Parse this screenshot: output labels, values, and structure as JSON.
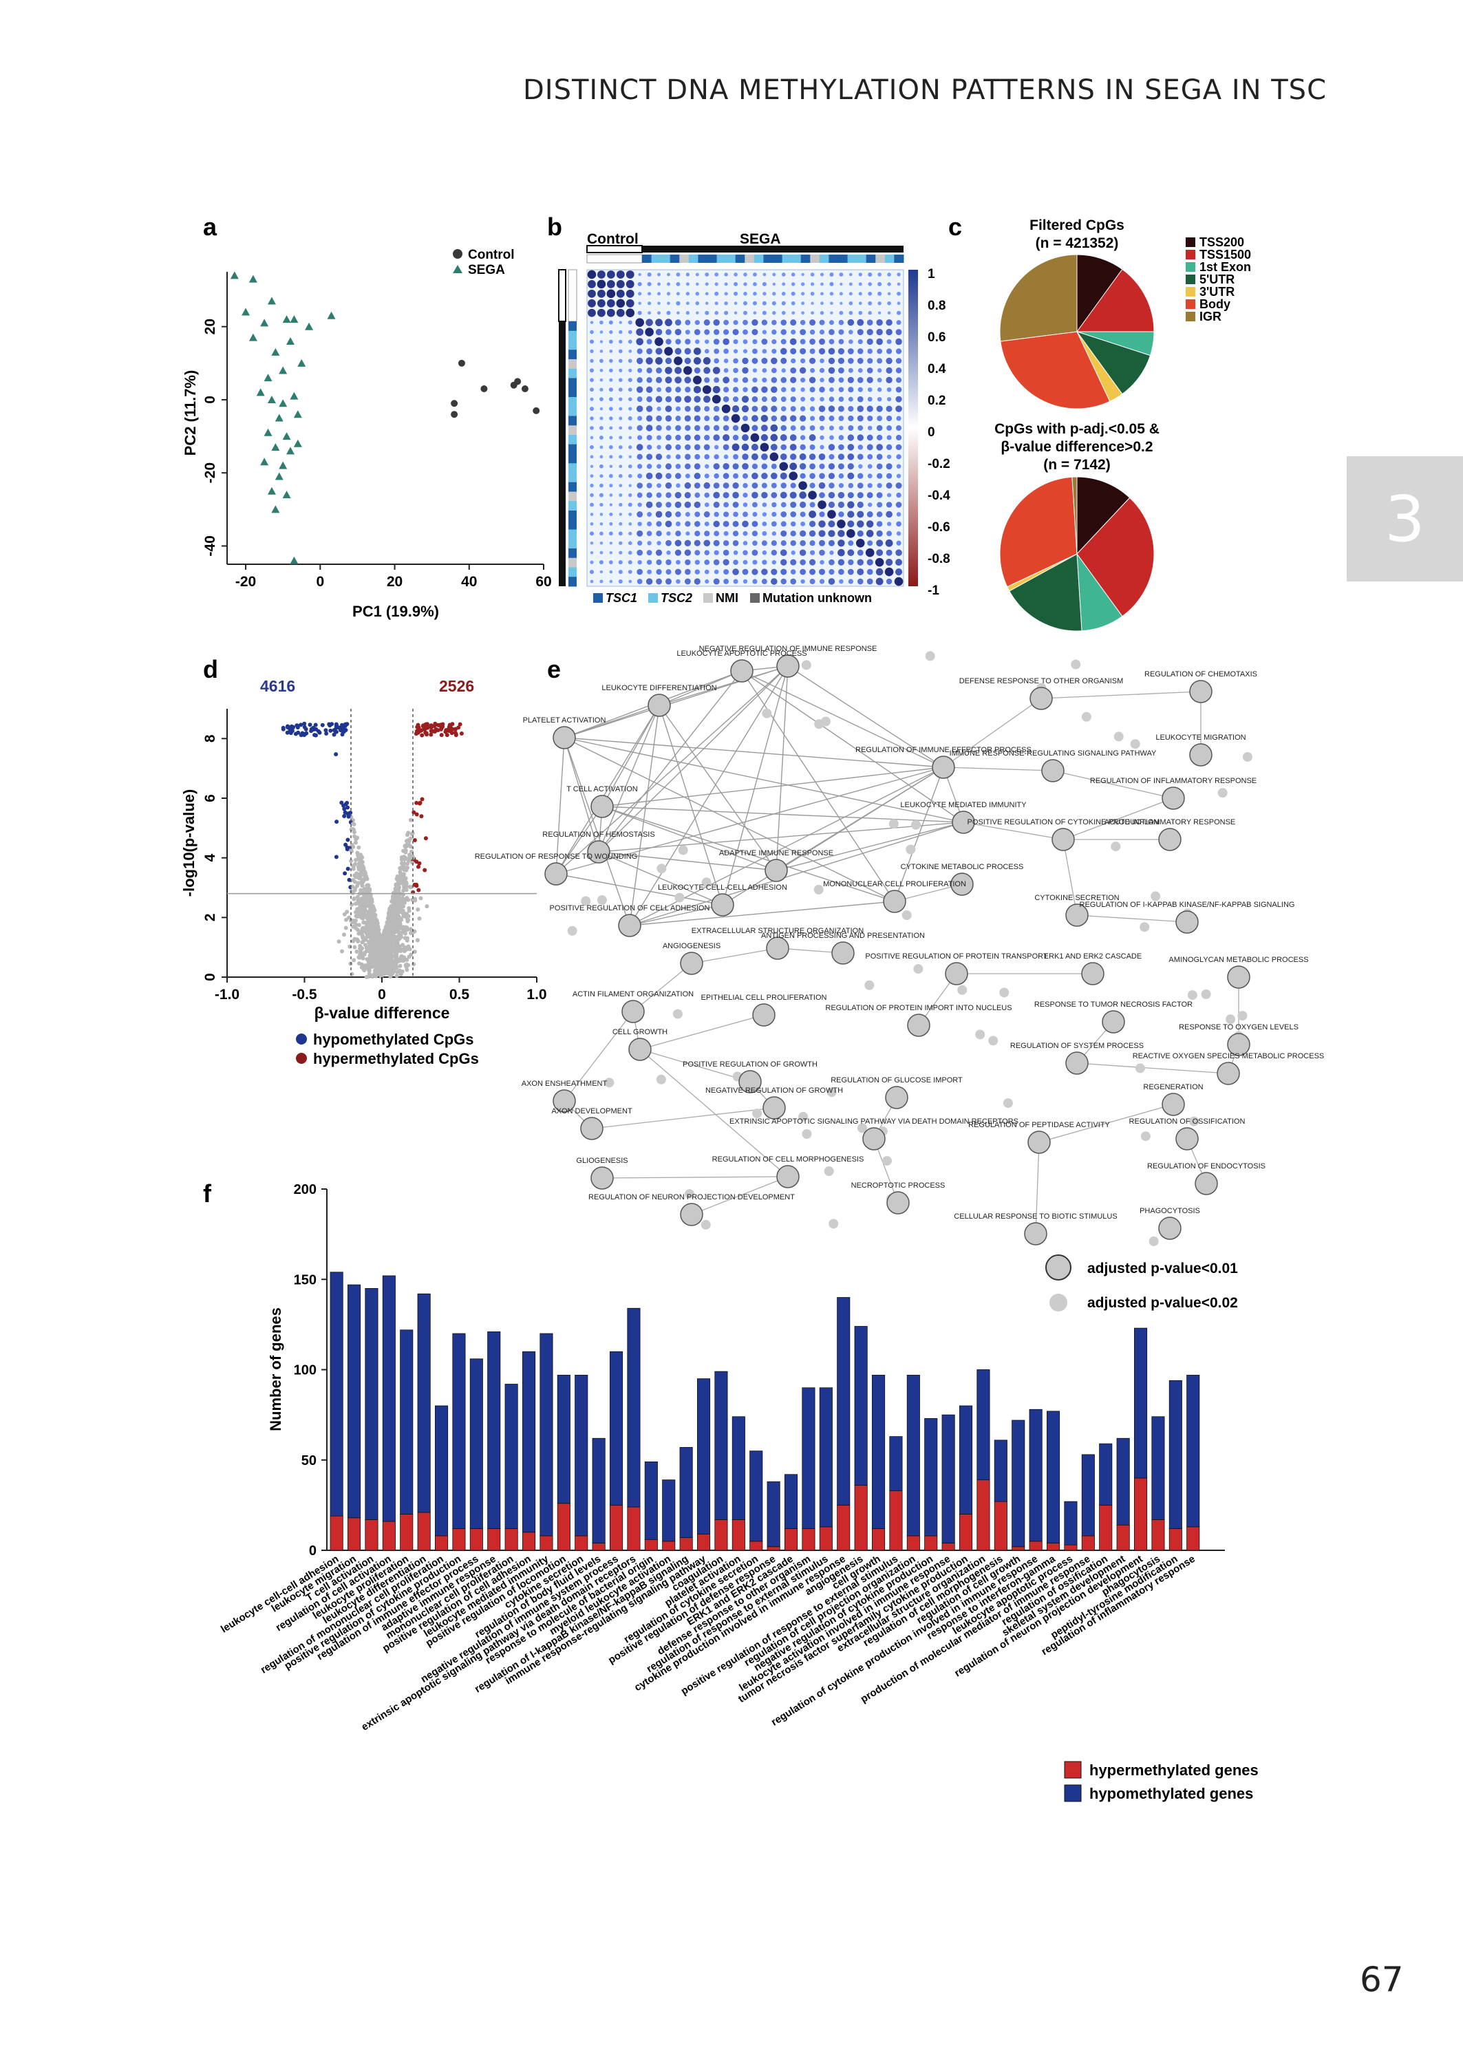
{
  "header": {
    "running_title": "DISTINCT DNA METHYLATION PATTERNS IN SEGA IN TSC"
  },
  "chapter_tab": {
    "number": "3"
  },
  "page_number": "67",
  "colors": {
    "control": "#3a3a3a",
    "sega": "#2e7d6e",
    "hypo": "#1f3690",
    "hyper": "#cc2a2a",
    "tsc1": "#1f5fa8",
    "tsc2": "#6cc4e6",
    "nmi": "#c8c8c8",
    "unknown": "#666666"
  },
  "panel_a": {
    "label": "a",
    "legend": [
      "Control",
      "SEGA"
    ],
    "xlabel": "PC1 (19.9%)",
    "ylabel": "PC2 (11.7%)",
    "xticks": [
      "-20",
      "0",
      "20",
      "40",
      "60"
    ],
    "yticks": [
      "-40",
      "-20",
      "0",
      "20"
    ]
  },
  "panel_b": {
    "label": "b",
    "group_labels": [
      "Control",
      "SEGA"
    ],
    "colorbar_ticks": [
      "1",
      "0.8",
      "0.6",
      "0.4",
      "0.2",
      "0",
      "-0.2",
      "-0.4",
      "-0.6",
      "-0.8",
      "-1"
    ],
    "legend": [
      "TSC1",
      "TSC2",
      "NMI",
      "Mutation unknown"
    ]
  },
  "panel_c": {
    "label": "c",
    "pie1_title_line1": "Filtered CpGs",
    "pie1_title_line2": "(n = 421352)",
    "pie2_title_line1": "CpGs with p-adj.<0.05 &",
    "pie2_title_line2": "β-value difference>0.2",
    "pie2_title_line3": "(n = 7142)",
    "legend": [
      {
        "label": "TSS200",
        "color": "#2a0a0a"
      },
      {
        "label": "TSS1500",
        "color": "#c62828"
      },
      {
        "label": "1st Exon",
        "color": "#3fb592"
      },
      {
        "label": "5'UTR",
        "color": "#1b5e3a"
      },
      {
        "label": "3'UTR",
        "color": "#f0c64a"
      },
      {
        "label": "Body",
        "color": "#e0452c"
      },
      {
        "label": "IGR",
        "color": "#9a7a34"
      }
    ]
  },
  "panel_d": {
    "label": "d",
    "count_hypo": "4616",
    "count_hyper": "2526",
    "xlabel": "β-value difference",
    "ylabel": "-log10(p-value)",
    "xticks": [
      "-1.0",
      "-0.5",
      "0",
      "0.5",
      "1.0"
    ],
    "yticks": [
      "0",
      "2",
      "4",
      "6",
      "8"
    ],
    "legend": [
      "hypomethylated CpGs",
      "hypermethylated CpGs"
    ]
  },
  "panel_e": {
    "label": "e",
    "legend": [
      "adjusted p-value<0.01",
      "adjusted p-value<0.02"
    ],
    "node_labels": [
      "LEUKOCYTE APOPTOTIC PROCESS",
      "NEGATIVE REGULATION OF IMMUNE RESPONSE",
      "LEUKOCYTE DIFFERENTIATION",
      "DEFENSE RESPONSE TO OTHER ORGANISM",
      "REGULATION OF CHEMOTAXIS",
      "LEUKOCYTE MIGRATION",
      "PLATELET ACTIVATION",
      "REGULATION OF IMMUNE EFFECTOR PROCESS",
      "IMMUNE RESPONSE-REGULATING SIGNALING PATHWAY",
      "REGULATION OF INFLAMMATORY RESPONSE",
      "T CELL ACTIVATION",
      "LEUKOCYTE MEDIATED IMMUNITY",
      "POSITIVE REGULATION OF CYTOKINE PRODUCTION",
      "ACUTE INFLAMMATORY RESPONSE",
      "REGULATION OF HEMOSTASIS",
      "ADAPTIVE IMMUNE RESPONSE",
      "CYTOKINE METABOLIC PROCESS",
      "REGULATION OF RESPONSE TO WOUNDING",
      "MONONUCLEAR CELL PROLIFERATION",
      "LEUKOCYTE CELL-CELL ADHESION",
      "POSITIVE REGULATION OF CELL ADHESION",
      "CYTOKINE SECRETION",
      "REGULATION OF I-KAPPAB KINASE/NF-KAPPAB SIGNALING",
      "ANTIGEN PROCESSING AND PRESENTATION",
      "EXTRACELLULAR STRUCTURE ORGANIZATION",
      "ANGIOGENESIS",
      "POSITIVE REGULATION OF PROTEIN TRANSPORT",
      "ERK1 AND ERK2 CASCADE",
      "AMINOGLYCAN METABOLIC PROCESS",
      "RESPONSE TO TUMOR NECROSIS FACTOR",
      "ACTIN FILAMENT ORGANIZATION",
      "EPITHELIAL CELL PROLIFERATION",
      "REGULATION OF PROTEIN IMPORT INTO NUCLEUS",
      "RESPONSE TO OXYGEN LEVELS",
      "CELL GROWTH",
      "REGULATION OF SYSTEM PROCESS",
      "REACTIVE OXYGEN SPECIES METABOLIC PROCESS",
      "POSITIVE REGULATION OF GROWTH",
      "REGULATION OF GLUCOSE IMPORT",
      "AXON ENSHEATHMENT",
      "NEGATIVE REGULATION OF GROWTH",
      "REGENERATION",
      "AXON DEVELOPMENT",
      "EXTRINSIC APOPTOTIC SIGNALING PATHWAY VIA DEATH DOMAIN RECEPTORS",
      "REGULATION OF PEPTIDASE ACTIVITY",
      "REGULATION OF OSSIFICATION",
      "GLIOGENESIS",
      "REGULATION OF CELL MORPHOGENESIS",
      "REGULATION OF ENDOCYTOSIS",
      "REGULATION OF NEURON PROJECTION DEVELOPMENT",
      "NECROPTOTIC PROCESS",
      "CELLULAR RESPONSE TO BIOTIC STIMULUS",
      "PHAGOCYTOSIS"
    ]
  },
  "panel_f": {
    "label": "f",
    "ylabel": "Number of genes",
    "yticks": [
      "0",
      "50",
      "100",
      "150",
      "200"
    ],
    "legend": [
      "hypermethylated genes",
      "hypomethylated genes"
    ]
  },
  "chart_data": [
    {
      "type": "scatter",
      "panel": "a",
      "xlabel": "PC1 (19.9%)",
      "ylabel": "PC2 (11.7%)",
      "xlim": [
        -25,
        60
      ],
      "ylim": [
        -45,
        35
      ],
      "series": [
        {
          "name": "Control",
          "points": [
            [
              38,
              10
            ],
            [
              36,
              -1
            ],
            [
              44,
              3
            ],
            [
              52,
              4
            ],
            [
              53,
              5
            ],
            [
              55,
              3
            ],
            [
              58,
              -3
            ],
            [
              36,
              -4
            ]
          ]
        },
        {
          "name": "SEGA",
          "points": [
            [
              -23,
              34
            ],
            [
              -18,
              33
            ],
            [
              -20,
              24
            ],
            [
              -15,
              21
            ],
            [
              -13,
              27
            ],
            [
              -9,
              22
            ],
            [
              -7,
              22
            ],
            [
              -3,
              20
            ],
            [
              3,
              23
            ],
            [
              -18,
              17
            ],
            [
              -12,
              13
            ],
            [
              -8,
              16
            ],
            [
              -5,
              10
            ],
            [
              -10,
              8
            ],
            [
              -14,
              6
            ],
            [
              -16,
              2
            ],
            [
              -13,
              0
            ],
            [
              -10,
              -1
            ],
            [
              -7,
              1
            ],
            [
              -11,
              -5
            ],
            [
              -6,
              -4
            ],
            [
              -14,
              -9
            ],
            [
              -9,
              -10
            ],
            [
              -6,
              -12
            ],
            [
              -12,
              -13
            ],
            [
              -15,
              -17
            ],
            [
              -10,
              -18
            ],
            [
              -8,
              -14
            ],
            [
              -11,
              -21
            ],
            [
              -13,
              -25
            ],
            [
              -9,
              -26
            ],
            [
              -12,
              -30
            ],
            [
              -7,
              -44
            ]
          ]
        }
      ]
    },
    {
      "type": "pie",
      "panel": "c1",
      "title": "Filtered CpGs (n = 421352)",
      "categories": [
        "TSS200",
        "TSS1500",
        "1st Exon",
        "5'UTR",
        "3'UTR",
        "Body",
        "IGR"
      ],
      "values": [
        10,
        15,
        5,
        10,
        3,
        30,
        27
      ]
    },
    {
      "type": "pie",
      "panel": "c2",
      "title": "CpGs with p-adj.<0.05 & β-value difference>0.2 (n = 7142)",
      "categories": [
        "TSS200",
        "TSS1500",
        "1st Exon",
        "5'UTR",
        "3'UTR",
        "Body",
        "IGR"
      ],
      "values": [
        12,
        28,
        9,
        18,
        1,
        31,
        1
      ]
    },
    {
      "type": "scatter",
      "panel": "d",
      "xlabel": "β-value difference",
      "ylabel": "-log10(p-value)",
      "xlim": [
        -1.0,
        1.0
      ],
      "ylim": [
        0,
        9
      ],
      "annotations": {
        "hypo_count": "4616",
        "hyper_count": "2526",
        "x_thresholds": [
          -0.2,
          0.2
        ],
        "y_threshold": 2.8
      }
    },
    {
      "type": "bar",
      "panel": "f",
      "ylabel": "Number of genes",
      "ylim": [
        0,
        200
      ],
      "categories": [
        "leukocyte cell-cell adhesion",
        "leukocyte migration",
        "T cell activation",
        "regulation of cell activation",
        "leukocyte proliferation",
        "leukocyte differentiation",
        "regulation of mononuclear cell proliferation",
        "positive regulation of cytokine production",
        "regulation of immune effector process",
        "adaptive immune response",
        "mononuclear cell proliferation",
        "positive regulation of cell adhesion",
        "leukocyte mediated immunity",
        "positive regulation of locomotion",
        "cytokine secretion",
        "regulation of body fluid levels",
        "negative regulation of immune system process",
        "extrinsic apoptotic signaling pathway via death domain receptors",
        "response to molecule of bacterial origin",
        "myeloid leukocyte activation",
        "regulation of I-kappaB kinase/NF-kappaB signaling",
        "immune response-regulating signaling pathway",
        "coagulation",
        "platelet activation",
        "regulation of cytokine secretion",
        "positive regulation of defense response",
        "ERK1 and ERK2 cascade",
        "defense response to other organism",
        "regulation of response to external stimulus",
        "cytokine production involved in immune response",
        "angiogenesis",
        "cell growth",
        "positive regulation of response to external stimulus",
        "regulation of cell projection organization",
        "negative regulation of cytokine production",
        "leukocyte activation involved in immune response",
        "tumor necrosis factor superfamily cytokine production",
        "extracellular structure organization",
        "regulation of cell morphogenesis",
        "regulation of cell growth",
        "regulation of cytokine production involved in immune response",
        "response to interferon-gamma",
        "leukocyte apoptotic process",
        "production of molecular mediator of immune response",
        "regulation of ossification",
        "skeletal system development",
        "regulation of neuron projection development",
        "phagocytosis",
        "peptidyl-tyrosine modification",
        "regulation of inflammatory response"
      ],
      "series": [
        {
          "name": "hypomethylated genes",
          "values": [
            135,
            129,
            128,
            136,
            102,
            121,
            72,
            108,
            94,
            109,
            80,
            100,
            112,
            71,
            89,
            58,
            85,
            110,
            43,
            34,
            50,
            86,
            82,
            57,
            50,
            36,
            30,
            78,
            77,
            115,
            88,
            85,
            30,
            89,
            65,
            71,
            60,
            61,
            34,
            70,
            73,
            73,
            24,
            45,
            34,
            48,
            83,
            57,
            82,
            84
          ]
        },
        {
          "name": "hypermethylated genes",
          "values": [
            19,
            18,
            17,
            16,
            20,
            21,
            8,
            12,
            12,
            12,
            12,
            10,
            8,
            26,
            8,
            4,
            25,
            24,
            6,
            5,
            7,
            9,
            17,
            17,
            5,
            2,
            12,
            12,
            13,
            25,
            36,
            12,
            33,
            8,
            8,
            4,
            20,
            39,
            27,
            2,
            5,
            4,
            3,
            8,
            25,
            14,
            40,
            17,
            12,
            13
          ]
        }
      ]
    }
  ]
}
